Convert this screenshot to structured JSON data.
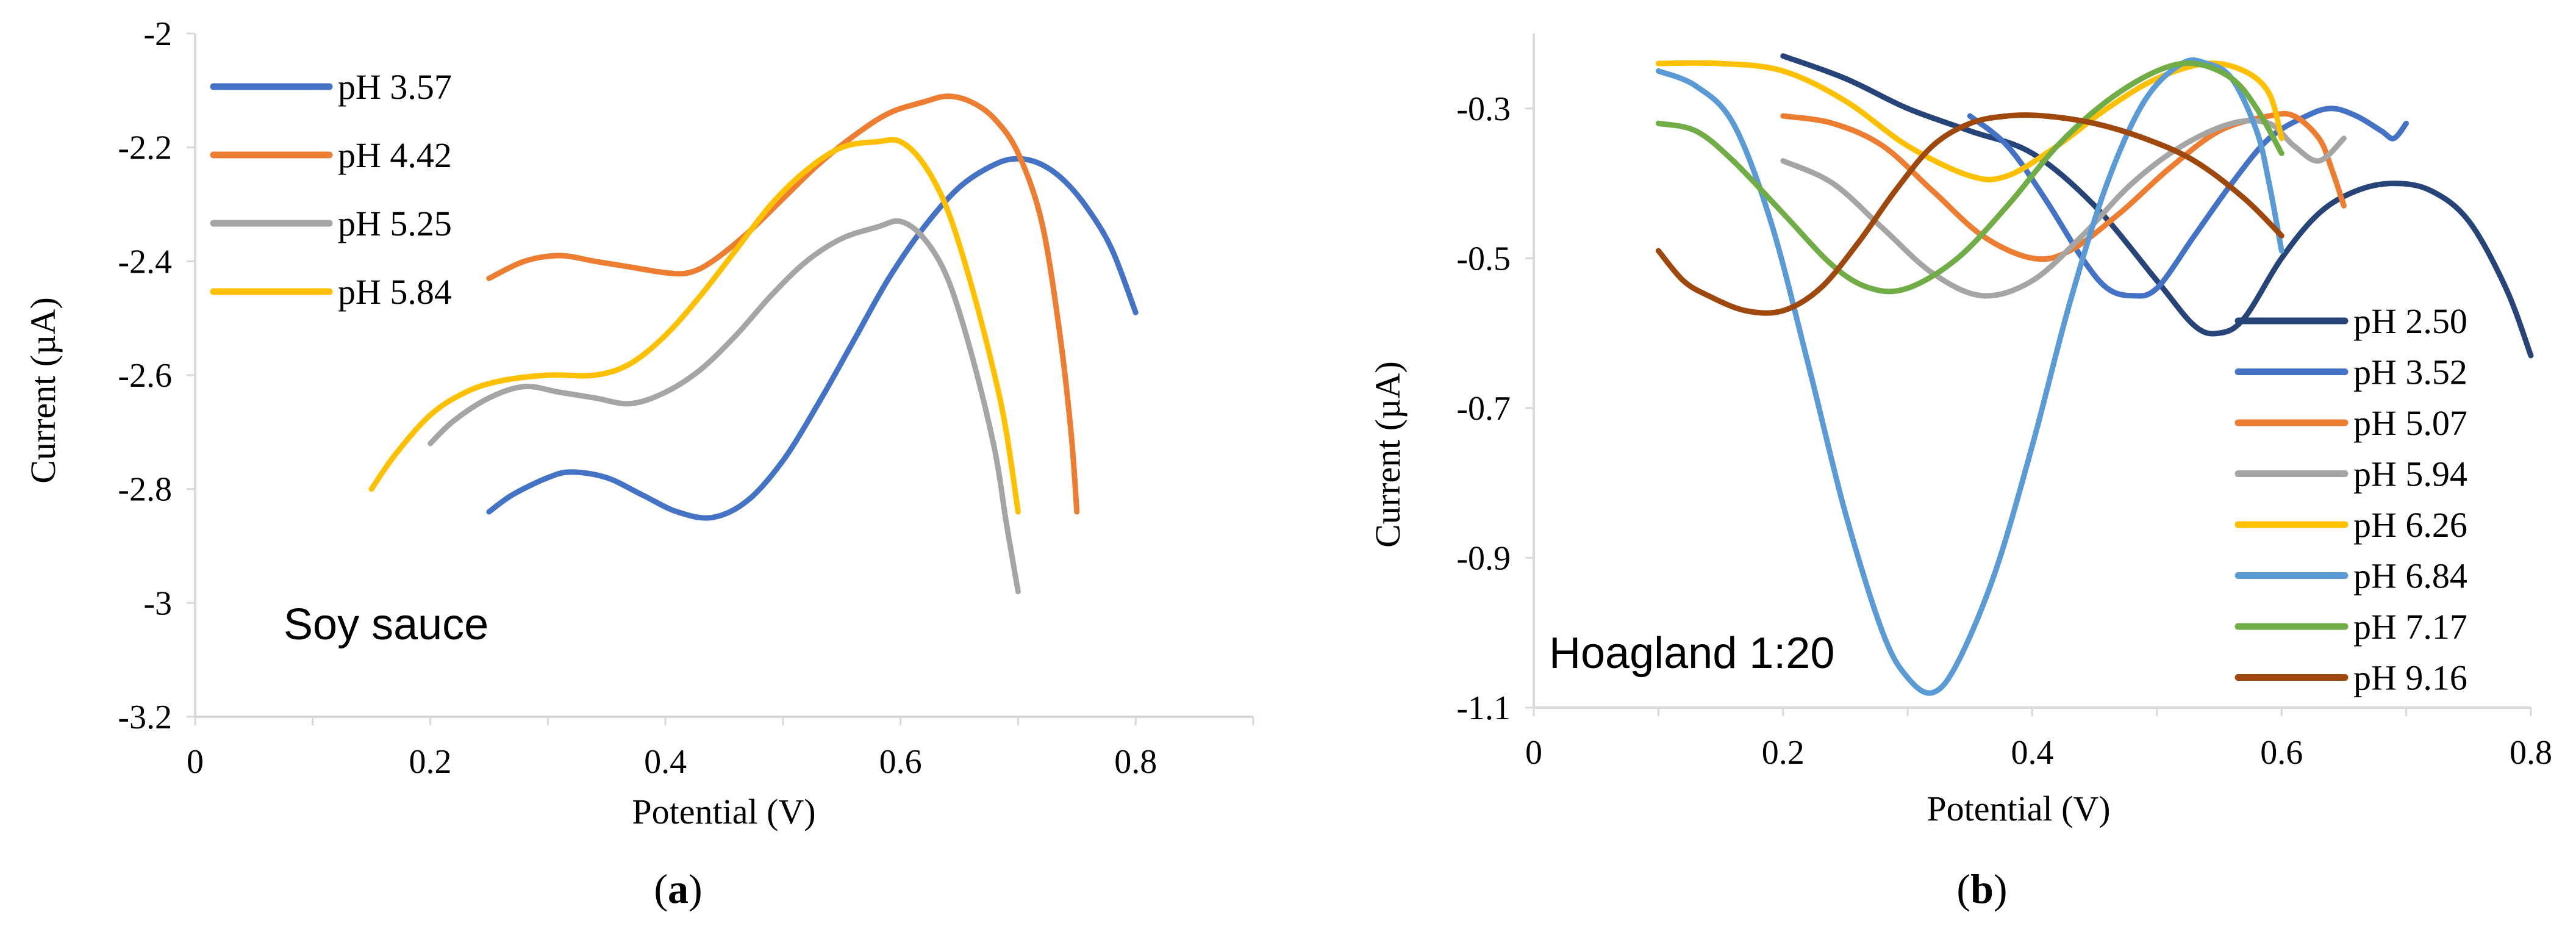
{
  "chart_data": [
    {
      "type": "line",
      "panel_label": "a",
      "xlabel": "Potential (V)",
      "ylabel": "Current (µA)",
      "xlim": [
        0,
        0.9
      ],
      "ylim": [
        -3.2,
        -2
      ],
      "x_ticks": [
        0,
        0.2,
        0.4,
        0.6,
        0.8
      ],
      "x_tick_labels": [
        "0",
        "0.2",
        "0.4",
        "0.6",
        "0.8"
      ],
      "y_ticks": [
        -3.2,
        -3,
        -2.8,
        -2.6,
        -2.4,
        -2.2,
        -2
      ],
      "y_tick_labels": [
        "-3.2",
        "-3",
        "-2.8",
        "-2.6",
        "-2.4",
        "-2.2",
        "-2"
      ],
      "legend_position": "top-left",
      "annotation": "Soy sauce",
      "series": [
        {
          "name": "pH 3.57",
          "color": "#4472c4",
          "points": [
            [
              0.25,
              -2.84
            ],
            [
              0.27,
              -2.81
            ],
            [
              0.3,
              -2.78
            ],
            [
              0.32,
              -2.77
            ],
            [
              0.35,
              -2.78
            ],
            [
              0.38,
              -2.81
            ],
            [
              0.41,
              -2.84
            ],
            [
              0.44,
              -2.85
            ],
            [
              0.47,
              -2.82
            ],
            [
              0.5,
              -2.75
            ],
            [
              0.53,
              -2.65
            ],
            [
              0.56,
              -2.54
            ],
            [
              0.59,
              -2.43
            ],
            [
              0.62,
              -2.34
            ],
            [
              0.65,
              -2.27
            ],
            [
              0.68,
              -2.23
            ],
            [
              0.7,
              -2.22
            ],
            [
              0.72,
              -2.23
            ],
            [
              0.74,
              -2.26
            ],
            [
              0.76,
              -2.31
            ],
            [
              0.78,
              -2.38
            ],
            [
              0.8,
              -2.49
            ]
          ]
        },
        {
          "name": "pH 4.42",
          "color": "#ed7d31",
          "points": [
            [
              0.25,
              -2.43
            ],
            [
              0.28,
              -2.4
            ],
            [
              0.31,
              -2.39
            ],
            [
              0.34,
              -2.4
            ],
            [
              0.37,
              -2.41
            ],
            [
              0.4,
              -2.42
            ],
            [
              0.42,
              -2.42
            ],
            [
              0.44,
              -2.4
            ],
            [
              0.47,
              -2.35
            ],
            [
              0.5,
              -2.29
            ],
            [
              0.53,
              -2.23
            ],
            [
              0.56,
              -2.18
            ],
            [
              0.59,
              -2.14
            ],
            [
              0.62,
              -2.12
            ],
            [
              0.64,
              -2.11
            ],
            [
              0.66,
              -2.12
            ],
            [
              0.68,
              -2.15
            ],
            [
              0.7,
              -2.21
            ],
            [
              0.72,
              -2.33
            ],
            [
              0.735,
              -2.52
            ],
            [
              0.745,
              -2.7
            ],
            [
              0.75,
              -2.84
            ]
          ]
        },
        {
          "name": "pH 5.25",
          "color": "#a5a5a5",
          "points": [
            [
              0.2,
              -2.72
            ],
            [
              0.22,
              -2.68
            ],
            [
              0.25,
              -2.64
            ],
            [
              0.28,
              -2.62
            ],
            [
              0.31,
              -2.63
            ],
            [
              0.34,
              -2.64
            ],
            [
              0.37,
              -2.65
            ],
            [
              0.4,
              -2.63
            ],
            [
              0.43,
              -2.59
            ],
            [
              0.46,
              -2.53
            ],
            [
              0.49,
              -2.46
            ],
            [
              0.52,
              -2.4
            ],
            [
              0.55,
              -2.36
            ],
            [
              0.58,
              -2.34
            ],
            [
              0.6,
              -2.33
            ],
            [
              0.62,
              -2.36
            ],
            [
              0.64,
              -2.43
            ],
            [
              0.66,
              -2.56
            ],
            [
              0.68,
              -2.73
            ],
            [
              0.69,
              -2.86
            ],
            [
              0.7,
              -2.98
            ]
          ]
        },
        {
          "name": "pH 5.84",
          "color": "#ffc000",
          "points": [
            [
              0.15,
              -2.8
            ],
            [
              0.17,
              -2.74
            ],
            [
              0.2,
              -2.67
            ],
            [
              0.23,
              -2.63
            ],
            [
              0.26,
              -2.61
            ],
            [
              0.3,
              -2.6
            ],
            [
              0.34,
              -2.6
            ],
            [
              0.37,
              -2.58
            ],
            [
              0.4,
              -2.53
            ],
            [
              0.43,
              -2.46
            ],
            [
              0.46,
              -2.38
            ],
            [
              0.49,
              -2.3
            ],
            [
              0.52,
              -2.24
            ],
            [
              0.55,
              -2.2
            ],
            [
              0.58,
              -2.19
            ],
            [
              0.6,
              -2.19
            ],
            [
              0.62,
              -2.23
            ],
            [
              0.64,
              -2.31
            ],
            [
              0.66,
              -2.44
            ],
            [
              0.68,
              -2.6
            ],
            [
              0.69,
              -2.7
            ],
            [
              0.7,
              -2.84
            ]
          ]
        }
      ]
    },
    {
      "type": "line",
      "panel_label": "b",
      "xlabel": "Potential (V)",
      "ylabel": "Current (µA)",
      "xlim": [
        0,
        0.8
      ],
      "ylim": [
        -1.1,
        -0.2
      ],
      "x_ticks": [
        0,
        0.2,
        0.4,
        0.6,
        0.8
      ],
      "x_tick_labels": [
        "0",
        "0.2",
        "0.4",
        "0.6",
        "0.8"
      ],
      "y_ticks": [
        -1.1,
        -0.9,
        -0.7,
        -0.5,
        -0.3
      ],
      "y_tick_labels": [
        "-1.1",
        "-0.9",
        "-0.7",
        "-0.5",
        "-0.3"
      ],
      "legend_position": "bottom-right",
      "annotation": "Hoagland 1:20",
      "series": [
        {
          "name": "pH 2.50",
          "color": "#264478",
          "points": [
            [
              0.2,
              -0.23
            ],
            [
              0.25,
              -0.26
            ],
            [
              0.3,
              -0.3
            ],
            [
              0.35,
              -0.33
            ],
            [
              0.4,
              -0.36
            ],
            [
              0.45,
              -0.43
            ],
            [
              0.5,
              -0.53
            ],
            [
              0.53,
              -0.59
            ],
            [
              0.55,
              -0.6
            ],
            [
              0.57,
              -0.58
            ],
            [
              0.6,
              -0.5
            ],
            [
              0.63,
              -0.44
            ],
            [
              0.66,
              -0.41
            ],
            [
              0.69,
              -0.4
            ],
            [
              0.72,
              -0.41
            ],
            [
              0.75,
              -0.45
            ],
            [
              0.78,
              -0.54
            ],
            [
              0.8,
              -0.63
            ]
          ]
        },
        {
          "name": "pH 3.52",
          "color": "#4472c4",
          "points": [
            [
              0.35,
              -0.31
            ],
            [
              0.38,
              -0.35
            ],
            [
              0.41,
              -0.42
            ],
            [
              0.44,
              -0.5
            ],
            [
              0.46,
              -0.54
            ],
            [
              0.48,
              -0.55
            ],
            [
              0.5,
              -0.54
            ],
            [
              0.53,
              -0.47
            ],
            [
              0.56,
              -0.4
            ],
            [
              0.59,
              -0.34
            ],
            [
              0.62,
              -0.31
            ],
            [
              0.64,
              -0.3
            ],
            [
              0.66,
              -0.31
            ],
            [
              0.68,
              -0.33
            ],
            [
              0.69,
              -0.34
            ],
            [
              0.7,
              -0.32
            ]
          ]
        },
        {
          "name": "pH 5.07",
          "color": "#ed7d31",
          "points": [
            [
              0.2,
              -0.31
            ],
            [
              0.24,
              -0.32
            ],
            [
              0.28,
              -0.35
            ],
            [
              0.32,
              -0.41
            ],
            [
              0.36,
              -0.47
            ],
            [
              0.4,
              -0.5
            ],
            [
              0.43,
              -0.49
            ],
            [
              0.47,
              -0.44
            ],
            [
              0.51,
              -0.38
            ],
            [
              0.55,
              -0.33
            ],
            [
              0.59,
              -0.31
            ],
            [
              0.61,
              -0.31
            ],
            [
              0.63,
              -0.34
            ],
            [
              0.64,
              -0.38
            ],
            [
              0.65,
              -0.43
            ]
          ]
        },
        {
          "name": "pH 5.94",
          "color": "#a5a5a5",
          "points": [
            [
              0.2,
              -0.37
            ],
            [
              0.24,
              -0.4
            ],
            [
              0.28,
              -0.46
            ],
            [
              0.32,
              -0.52
            ],
            [
              0.36,
              -0.55
            ],
            [
              0.4,
              -0.53
            ],
            [
              0.44,
              -0.47
            ],
            [
              0.48,
              -0.4
            ],
            [
              0.52,
              -0.35
            ],
            [
              0.56,
              -0.32
            ],
            [
              0.59,
              -0.32
            ],
            [
              0.61,
              -0.35
            ],
            [
              0.63,
              -0.37
            ],
            [
              0.65,
              -0.34
            ]
          ]
        },
        {
          "name": "pH 6.26",
          "color": "#ffc000",
          "points": [
            [
              0.1,
              -0.24
            ],
            [
              0.15,
              -0.24
            ],
            [
              0.2,
              -0.25
            ],
            [
              0.25,
              -0.29
            ],
            [
              0.3,
              -0.35
            ],
            [
              0.35,
              -0.39
            ],
            [
              0.38,
              -0.39
            ],
            [
              0.42,
              -0.35
            ],
            [
              0.46,
              -0.3
            ],
            [
              0.5,
              -0.26
            ],
            [
              0.54,
              -0.24
            ],
            [
              0.57,
              -0.25
            ],
            [
              0.59,
              -0.28
            ],
            [
              0.6,
              -0.34
            ]
          ]
        },
        {
          "name": "pH 6.84",
          "color": "#5b9bd5",
          "points": [
            [
              0.1,
              -0.25
            ],
            [
              0.13,
              -0.27
            ],
            [
              0.16,
              -0.32
            ],
            [
              0.19,
              -0.45
            ],
            [
              0.22,
              -0.64
            ],
            [
              0.25,
              -0.84
            ],
            [
              0.28,
              -1.0
            ],
            [
              0.3,
              -1.06
            ],
            [
              0.32,
              -1.08
            ],
            [
              0.34,
              -1.04
            ],
            [
              0.37,
              -0.92
            ],
            [
              0.4,
              -0.75
            ],
            [
              0.43,
              -0.56
            ],
            [
              0.46,
              -0.4
            ],
            [
              0.49,
              -0.29
            ],
            [
              0.52,
              -0.24
            ],
            [
              0.54,
              -0.24
            ],
            [
              0.56,
              -0.26
            ],
            [
              0.58,
              -0.33
            ],
            [
              0.59,
              -0.4
            ],
            [
              0.6,
              -0.49
            ]
          ]
        },
        {
          "name": "pH 7.17",
          "color": "#70ad47",
          "points": [
            [
              0.1,
              -0.32
            ],
            [
              0.13,
              -0.33
            ],
            [
              0.16,
              -0.37
            ],
            [
              0.2,
              -0.44
            ],
            [
              0.24,
              -0.51
            ],
            [
              0.27,
              -0.54
            ],
            [
              0.3,
              -0.54
            ],
            [
              0.34,
              -0.5
            ],
            [
              0.38,
              -0.43
            ],
            [
              0.42,
              -0.35
            ],
            [
              0.46,
              -0.29
            ],
            [
              0.5,
              -0.25
            ],
            [
              0.53,
              -0.24
            ],
            [
              0.56,
              -0.26
            ],
            [
              0.58,
              -0.3
            ],
            [
              0.6,
              -0.36
            ]
          ]
        },
        {
          "name": "pH 9.16",
          "color": "#9e480e",
          "points": [
            [
              0.1,
              -0.49
            ],
            [
              0.12,
              -0.53
            ],
            [
              0.14,
              -0.55
            ],
            [
              0.17,
              -0.57
            ],
            [
              0.2,
              -0.57
            ],
            [
              0.23,
              -0.54
            ],
            [
              0.26,
              -0.48
            ],
            [
              0.29,
              -0.41
            ],
            [
              0.32,
              -0.35
            ],
            [
              0.35,
              -0.32
            ],
            [
              0.38,
              -0.31
            ],
            [
              0.41,
              -0.31
            ],
            [
              0.45,
              -0.32
            ],
            [
              0.49,
              -0.34
            ],
            [
              0.53,
              -0.37
            ],
            [
              0.57,
              -0.42
            ],
            [
              0.6,
              -0.47
            ]
          ]
        }
      ]
    }
  ]
}
